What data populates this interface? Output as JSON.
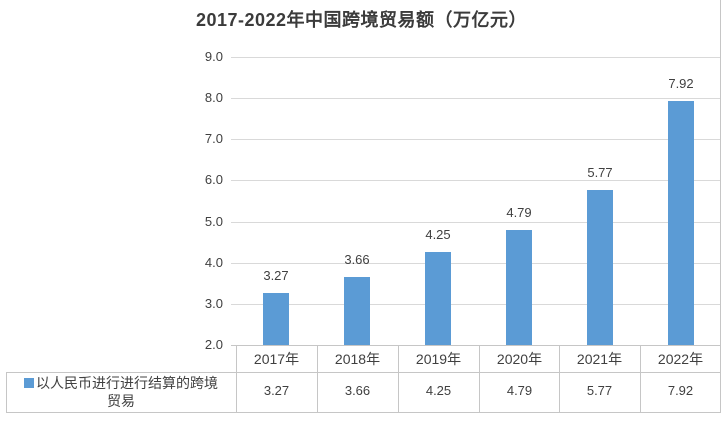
{
  "chart_data": {
    "type": "bar",
    "title": "2017-2022年中国跨境贸易额（万亿元）",
    "categories": [
      "2017年",
      "2018年",
      "2019年",
      "2020年",
      "2021年",
      "2022年"
    ],
    "series": [
      {
        "name": "以人民币进行进行结算的跨境贸易",
        "color": "#5B9BD5",
        "values": [
          3.27,
          3.66,
          4.25,
          4.79,
          5.77,
          7.92
        ]
      }
    ],
    "data_labels": [
      "3.27",
      "3.66",
      "4.25",
      "4.79",
      "5.77",
      "7.92"
    ],
    "value_axis": {
      "min": 2.0,
      "max": 9.0,
      "tick_interval": 1.0,
      "tick_labels": [
        "9.0",
        "8.0",
        "7.0",
        "6.0",
        "5.0",
        "4.0",
        "3.0",
        "2.0"
      ]
    },
    "grid": true,
    "legend_position": "data-table-left",
    "data_table": {
      "shown": true,
      "legend_name_lines": [
        "以人民币进行进行结算的跨境",
        "贸易"
      ],
      "header_row": [
        "2017年",
        "2018年",
        "2019年",
        "2020年",
        "2021年",
        "2022年"
      ],
      "value_row": [
        "3.27",
        "3.66",
        "4.25",
        "4.79",
        "5.77",
        "7.92"
      ]
    },
    "colors": {
      "bar": "#5B9BD5",
      "gridline": "#D9D9D9",
      "table_border": "#C6C6C6",
      "text": "#404040",
      "title": "#3B3B3B"
    }
  }
}
